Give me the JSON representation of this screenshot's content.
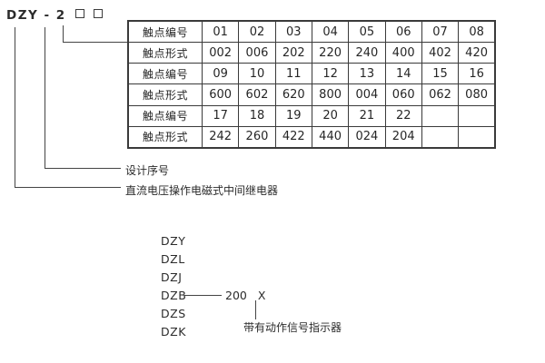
{
  "model_code": {
    "prefix": "DZY - 2",
    "box_count": 2
  },
  "contact_table": {
    "rows": [
      {
        "header": "触点编号",
        "cells": [
          "01",
          "02",
          "03",
          "04",
          "05",
          "06",
          "07",
          "08"
        ]
      },
      {
        "header": "触点形式",
        "cells": [
          "002",
          "006",
          "202",
          "220",
          "240",
          "400",
          "402",
          "420"
        ]
      },
      {
        "header": "触点编号",
        "cells": [
          "09",
          "10",
          "11",
          "12",
          "13",
          "14",
          "15",
          "16"
        ]
      },
      {
        "header": "触点形式",
        "cells": [
          "600",
          "602",
          "620",
          "800",
          "004",
          "060",
          "062",
          "080"
        ]
      },
      {
        "header": "触点编号",
        "cells": [
          "17",
          "18",
          "19",
          "20",
          "21",
          "22",
          "",
          ""
        ]
      },
      {
        "header": "触点形式",
        "cells": [
          "242",
          "260",
          "422",
          "440",
          "024",
          "204",
          "",
          ""
        ]
      }
    ]
  },
  "annotations": {
    "design_serial": "设计序号",
    "relay_description": "直流电压操作电磁式中间继电器"
  },
  "model_series": {
    "items": [
      "DZY",
      "DZL",
      "DZJ",
      "DZB",
      "DZS",
      "DZK"
    ],
    "dzb_value": "200",
    "dzb_x": "X",
    "indicator_note": "带有动作信号指示器"
  },
  "colors": {
    "line": "#444444",
    "border": "#3a3a3a",
    "text": "#2b2b2b",
    "background": "#ffffff"
  }
}
